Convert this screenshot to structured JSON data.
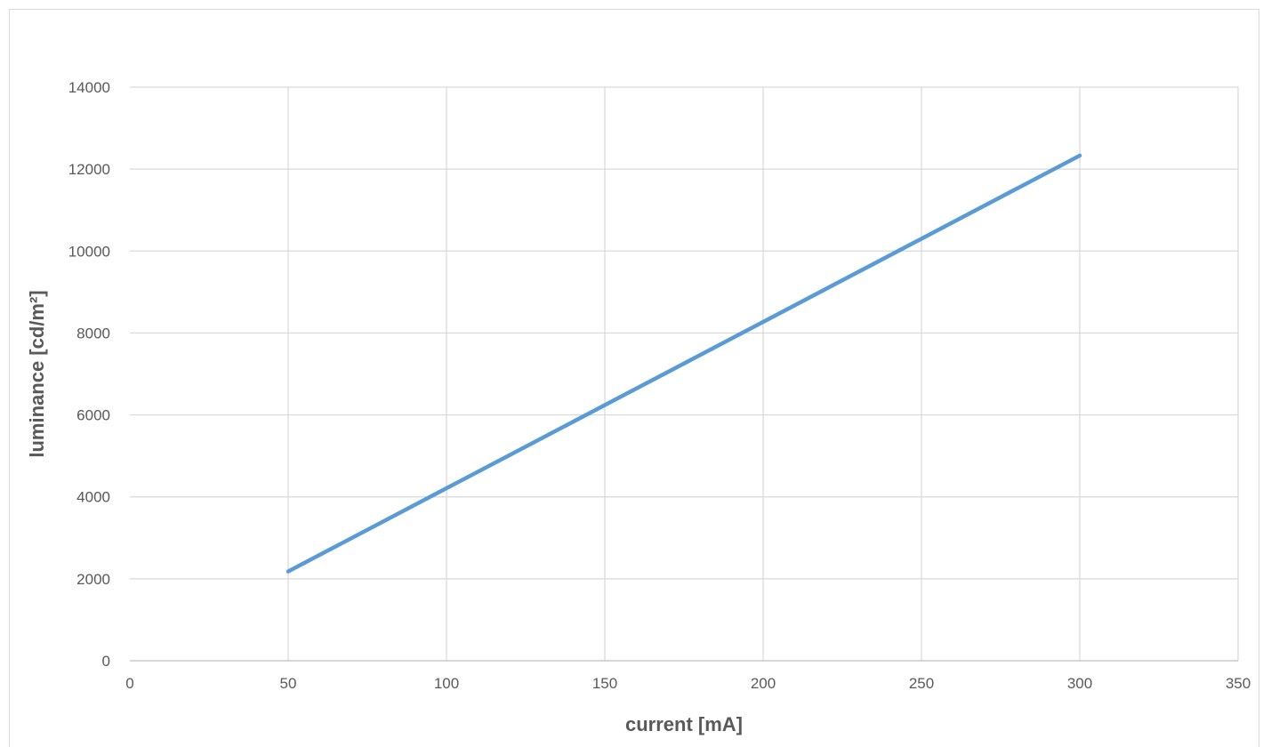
{
  "chart_data": {
    "type": "line",
    "title": "",
    "xlabel": "current [mA]",
    "ylabel": "luminance [cd/m²]",
    "xlim": [
      0,
      350
    ],
    "ylim": [
      0,
      14000
    ],
    "x_ticks": [
      0,
      50,
      100,
      150,
      200,
      250,
      300,
      350
    ],
    "y_ticks": [
      0,
      2000,
      4000,
      6000,
      8000,
      10000,
      12000,
      14000
    ],
    "grid": true,
    "legend": "none",
    "series": [
      {
        "color": "#5b9bd5",
        "x": [
          50,
          100,
          150,
          200,
          250,
          300
        ],
        "y": [
          2180,
          4210,
          6240,
          8270,
          10300,
          12330
        ]
      }
    ]
  }
}
